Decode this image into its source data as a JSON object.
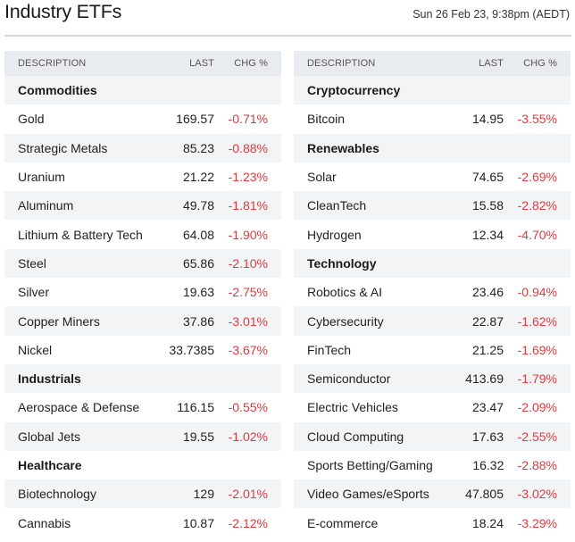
{
  "header": {
    "title": "Industry ETFs",
    "timestamp": "Sun 26 Feb 23, 9:38pm (AEDT)"
  },
  "columns": {
    "description": "DESCRIPTION",
    "last": "LAST",
    "change": "CHG %"
  },
  "colors": {
    "negative": "#e0393e",
    "header_bg": "#e8ebef",
    "row_alt": "#f3f4f6"
  },
  "left_table": [
    {
      "type": "category",
      "label": "Commodities"
    },
    {
      "type": "item",
      "name": "Gold",
      "last": "169.57",
      "chg": "-0.71%"
    },
    {
      "type": "item",
      "name": "Strategic Metals",
      "last": "85.23",
      "chg": "-0.88%"
    },
    {
      "type": "item",
      "name": "Uranium",
      "last": "21.22",
      "chg": "-1.23%"
    },
    {
      "type": "item",
      "name": "Aluminum",
      "last": "49.78",
      "chg": "-1.81%"
    },
    {
      "type": "item",
      "name": "Lithium & Battery Tech",
      "last": "64.08",
      "chg": "-1.90%"
    },
    {
      "type": "item",
      "name": "Steel",
      "last": "65.86",
      "chg": "-2.10%"
    },
    {
      "type": "item",
      "name": "Silver",
      "last": "19.63",
      "chg": "-2.75%"
    },
    {
      "type": "item",
      "name": "Copper Miners",
      "last": "37.86",
      "chg": "-3.01%"
    },
    {
      "type": "item",
      "name": "Nickel",
      "last": "33.7385",
      "chg": "-3.67%"
    },
    {
      "type": "category",
      "label": "Industrials"
    },
    {
      "type": "item",
      "name": "Aerospace & Defense",
      "last": "116.15",
      "chg": "-0.55%"
    },
    {
      "type": "item",
      "name": "Global Jets",
      "last": "19.55",
      "chg": "-1.02%"
    },
    {
      "type": "category",
      "label": "Healthcare"
    },
    {
      "type": "item",
      "name": "Biotechnology",
      "last": "129",
      "chg": "-2.01%"
    },
    {
      "type": "item",
      "name": "Cannabis",
      "last": "10.87",
      "chg": "-2.12%"
    }
  ],
  "right_table": [
    {
      "type": "category",
      "label": "Cryptocurrency"
    },
    {
      "type": "item",
      "name": "Bitcoin",
      "last": "14.95",
      "chg": "-3.55%"
    },
    {
      "type": "category",
      "label": "Renewables"
    },
    {
      "type": "item",
      "name": "Solar",
      "last": "74.65",
      "chg": "-2.69%"
    },
    {
      "type": "item",
      "name": "CleanTech",
      "last": "15.58",
      "chg": "-2.82%"
    },
    {
      "type": "item",
      "name": "Hydrogen",
      "last": "12.34",
      "chg": "-4.70%"
    },
    {
      "type": "category",
      "label": "Technology"
    },
    {
      "type": "item",
      "name": "Robotics & AI",
      "last": "23.46",
      "chg": "-0.94%"
    },
    {
      "type": "item",
      "name": "Cybersecurity",
      "last": "22.87",
      "chg": "-1.62%"
    },
    {
      "type": "item",
      "name": "FinTech",
      "last": "21.25",
      "chg": "-1.69%"
    },
    {
      "type": "item",
      "name": "Semiconductor",
      "last": "413.69",
      "chg": "-1.79%"
    },
    {
      "type": "item",
      "name": "Electric Vehicles",
      "last": "23.47",
      "chg": "-2.09%"
    },
    {
      "type": "item",
      "name": "Cloud Computing",
      "last": "17.63",
      "chg": "-2.55%"
    },
    {
      "type": "item",
      "name": "Sports Betting/Gaming",
      "last": "16.32",
      "chg": "-2.88%"
    },
    {
      "type": "item",
      "name": "Video Games/eSports",
      "last": "47.805",
      "chg": "-3.02%"
    },
    {
      "type": "item",
      "name": "E-commerce",
      "last": "18.24",
      "chg": "-3.29%"
    }
  ]
}
